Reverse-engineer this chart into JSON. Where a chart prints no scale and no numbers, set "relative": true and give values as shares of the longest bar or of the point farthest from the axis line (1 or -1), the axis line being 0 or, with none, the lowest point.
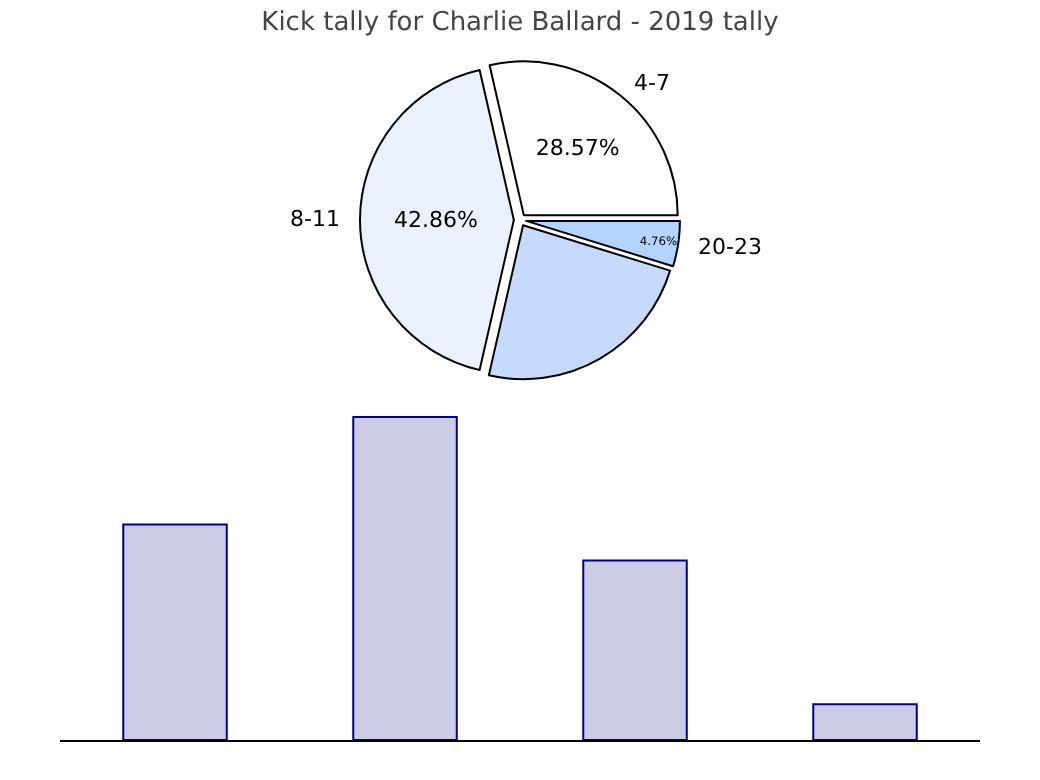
{
  "chart_data": [
    {
      "type": "pie",
      "title": "Kick tally for Charlie Ballard - 2019 tally",
      "categories": [
        "4-7",
        "8-11",
        null,
        "20-23"
      ],
      "values": [
        28.57,
        42.86,
        23.81,
        4.76
      ],
      "colors": [
        "#ffffff",
        "#eaf1fd",
        "#c6dafe",
        "#b3d4ff"
      ],
      "value_labels": [
        "28.57%",
        "42.86%",
        null,
        "4.76%"
      ]
    },
    {
      "type": "bar",
      "relative": true,
      "categories": [
        null,
        null,
        null,
        null
      ],
      "series": [
        {
          "color": "#cccce6",
          "values": [
            0.667,
            1,
            0.556,
            0.111
          ]
        }
      ]
    }
  ]
}
